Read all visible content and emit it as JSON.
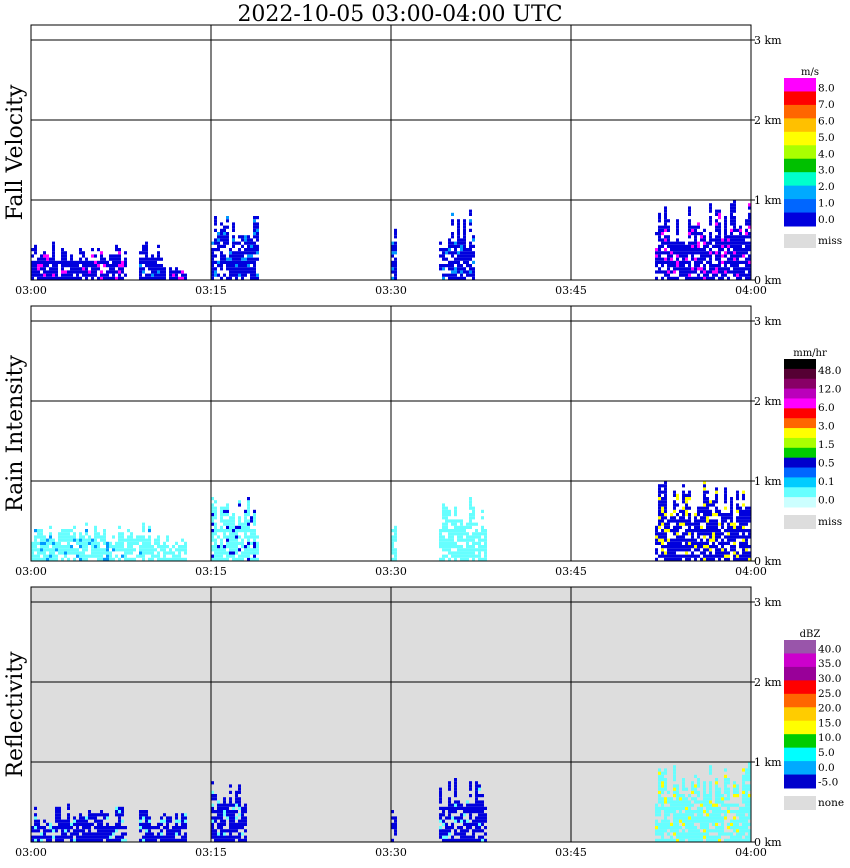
{
  "title": "2022-10-05   03:00-04:00 UTC",
  "chart_data": [
    {
      "type": "heatmap",
      "ylabel": "Fall Velocity",
      "x_ticks": [
        "03:00",
        "03:15",
        "03:30",
        "03:45",
        "04:00"
      ],
      "y_ticks": [
        "0 km",
        "1 km",
        "2 km",
        "3 km"
      ],
      "xlim": [
        "03:00",
        "04:00"
      ],
      "ylim_km": [
        0,
        3.2
      ],
      "grid": true,
      "legend_position": "right",
      "colorbar": {
        "unit": "m/s",
        "levels": [
          "8.0",
          "7.0",
          "6.0",
          "5.0",
          "4.0",
          "3.0",
          "2.0",
          "1.0",
          "0.0"
        ],
        "colors": [
          "#ff00ff",
          "#ff0000",
          "#ff6600",
          "#ffc000",
          "#ffff00",
          "#aaff00",
          "#00c000",
          "#00ffcc",
          "#00aaff",
          "#0066ff",
          "#0000dd"
        ],
        "miss_label": "miss",
        "miss_color": "#dddddd"
      },
      "echo_regions": [
        {
          "start": "03:00",
          "end": "03:08",
          "top_km": 0.45,
          "dominant": "blue",
          "peak": "magenta"
        },
        {
          "start": "03:09",
          "end": "03:11",
          "top_km": 0.5,
          "dominant": "blue",
          "peak": "light blue"
        },
        {
          "start": "03:11",
          "end": "03:13",
          "top_km": 0.15,
          "dominant": "blue",
          "peak": "magenta"
        },
        {
          "start": "03:15",
          "end": "03:19",
          "top_km": 0.8,
          "dominant": "blue",
          "peak": "light blue"
        },
        {
          "start": "03:30",
          "end": "03:30",
          "top_km": 0.65,
          "dominant": "blue",
          "peak": "light blue"
        },
        {
          "start": "03:34",
          "end": "03:37",
          "top_km": 0.85,
          "dominant": "blue",
          "peak": "light blue"
        },
        {
          "start": "03:52",
          "end": "04:00",
          "top_km": 1.0,
          "dominant": "blue",
          "peak": "magenta"
        }
      ]
    },
    {
      "type": "heatmap",
      "ylabel": "Rain Intensity",
      "x_ticks": [
        "03:00",
        "03:15",
        "03:30",
        "03:45",
        "04:00"
      ],
      "y_ticks": [
        "0 km",
        "1 km",
        "2 km",
        "3 km"
      ],
      "xlim": [
        "03:00",
        "04:00"
      ],
      "ylim_km": [
        0,
        3.2
      ],
      "grid": true,
      "legend_position": "right",
      "colorbar": {
        "unit": "mm/hr",
        "levels": [
          "48.0",
          "12.0",
          "6.0",
          "3.0",
          "1.5",
          "0.5",
          "0.1",
          "0.0"
        ],
        "colors": [
          "#000000",
          "#550033",
          "#880066",
          "#bb00bb",
          "#ff00ff",
          "#ff0000",
          "#ff6600",
          "#ffff00",
          "#aaff00",
          "#00cc00",
          "#0000cc",
          "#0066ff",
          "#00ccff",
          "#66ffff",
          "#ccffff"
        ],
        "miss_label": "miss",
        "miss_color": "#dddddd"
      },
      "echo_regions": [
        {
          "start": "03:00",
          "end": "03:10",
          "top_km": 0.45,
          "dominant": "cyan",
          "peak": "light blue"
        },
        {
          "start": "03:10",
          "end": "03:13",
          "top_km": 0.3,
          "dominant": "cyan",
          "peak": "cyan"
        },
        {
          "start": "03:15",
          "end": "03:19",
          "top_km": 0.8,
          "dominant": "cyan",
          "peak": "blue"
        },
        {
          "start": "03:30",
          "end": "03:30",
          "top_km": 0.65,
          "dominant": "cyan",
          "peak": "cyan"
        },
        {
          "start": "03:34",
          "end": "03:38",
          "top_km": 0.85,
          "dominant": "cyan",
          "peak": "cyan"
        },
        {
          "start": "03:52",
          "end": "04:00",
          "top_km": 1.0,
          "dominant": "blue",
          "peak": "yellow"
        }
      ]
    },
    {
      "type": "heatmap",
      "ylabel": "Reflectivity",
      "x_ticks": [
        "03:00",
        "03:15",
        "03:30",
        "03:45",
        "04:00"
      ],
      "y_ticks": [
        "0 km",
        "1 km",
        "2 km",
        "3 km"
      ],
      "xlim": [
        "03:00",
        "04:00"
      ],
      "ylim_km": [
        0,
        3.2
      ],
      "grid": true,
      "legend_position": "right",
      "colorbar": {
        "unit": "dBZ",
        "levels": [
          "40.0",
          "35.0",
          "30.0",
          "25.0",
          "20.0",
          "15.0",
          "10.0",
          "5.0",
          "0.0",
          "-5.0"
        ],
        "colors": [
          "#9955aa",
          "#cc00cc",
          "#990099",
          "#ff0000",
          "#ff6600",
          "#ffcc00",
          "#ffff00",
          "#00cc00",
          "#00ffff",
          "#00aaff",
          "#0000cc"
        ],
        "miss_label": "none",
        "miss_color": "#dddddd"
      },
      "background": "#dddddd",
      "echo_regions": [
        {
          "start": "03:00",
          "end": "03:08",
          "top_km": 0.45,
          "dominant": "blue",
          "peak": "cyan"
        },
        {
          "start": "03:09",
          "end": "03:13",
          "top_km": 0.4,
          "dominant": "blue",
          "peak": "cyan"
        },
        {
          "start": "03:15",
          "end": "03:18",
          "top_km": 0.8,
          "dominant": "blue",
          "peak": "cyan"
        },
        {
          "start": "03:30",
          "end": "03:30",
          "top_km": 0.65,
          "dominant": "blue",
          "peak": "blue"
        },
        {
          "start": "03:34",
          "end": "03:38",
          "top_km": 0.85,
          "dominant": "blue",
          "peak": "cyan"
        },
        {
          "start": "03:52",
          "end": "04:00",
          "top_km": 1.0,
          "dominant": "cyan",
          "peak": "yellow"
        }
      ]
    }
  ]
}
